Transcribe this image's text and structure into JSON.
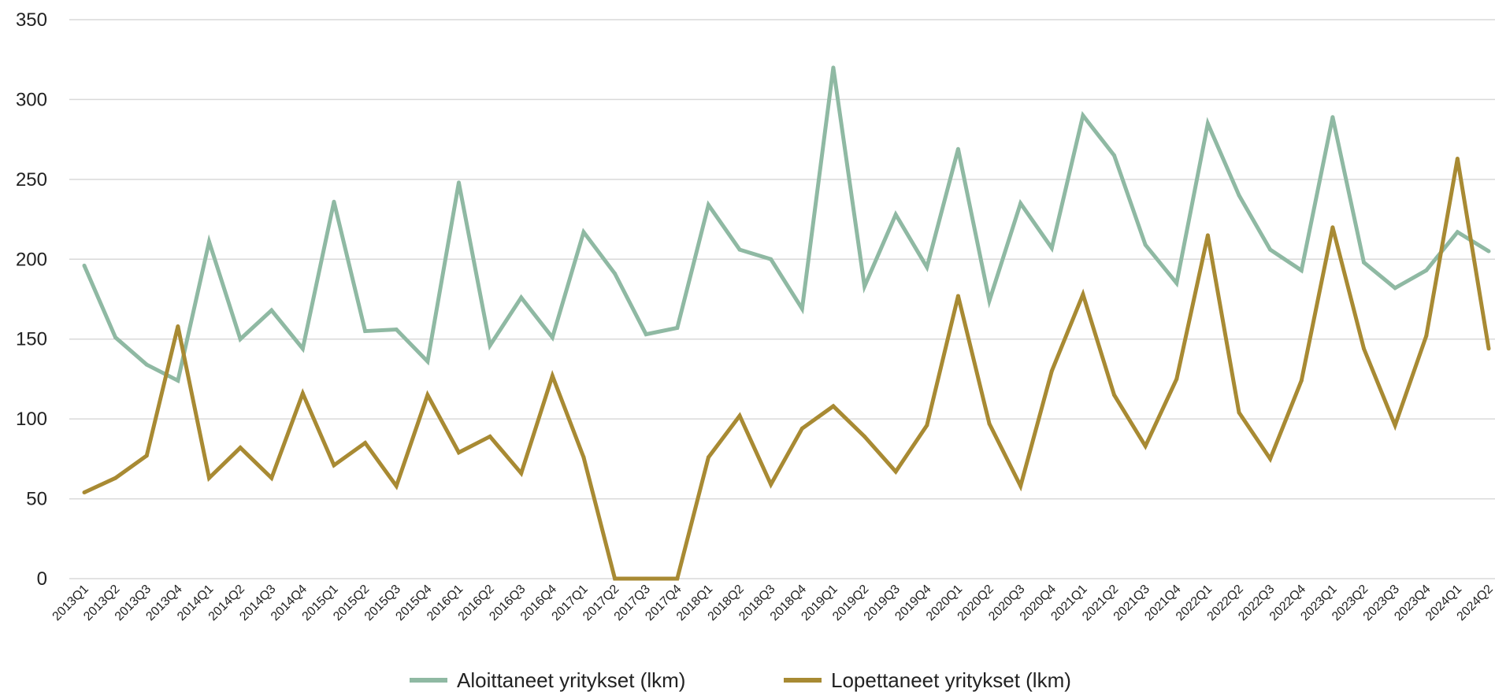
{
  "chart_data": {
    "type": "line",
    "title": "",
    "xlabel": "",
    "ylabel": "",
    "ylim": [
      0,
      350
    ],
    "yticks": [
      0,
      50,
      100,
      150,
      200,
      250,
      300,
      350
    ],
    "grid": true,
    "legend_position": "bottom",
    "categories": [
      "2013Q1",
      "2013Q2",
      "2013Q3",
      "2013Q4",
      "2014Q1",
      "2014Q2",
      "2014Q3",
      "2014Q4",
      "2015Q1",
      "2015Q2",
      "2015Q3",
      "2015Q4",
      "2016Q1",
      "2016Q2",
      "2016Q3",
      "2016Q4",
      "2017Q1",
      "2017Q2",
      "2017Q3",
      "2017Q4",
      "2018Q1",
      "2018Q2",
      "2018Q3",
      "2018Q4",
      "2019Q1",
      "2019Q2",
      "2019Q3",
      "2019Q4",
      "2020Q1",
      "2020Q2",
      "2020Q3",
      "2020Q4",
      "2021Q1",
      "2021Q2",
      "2021Q3",
      "2021Q4",
      "2022Q1",
      "2022Q2",
      "2022Q3",
      "2022Q4",
      "2023Q1",
      "2023Q2",
      "2023Q3",
      "2023Q4",
      "2024Q1",
      "2024Q2"
    ],
    "series": [
      {
        "name": "Aloittaneet yritykset (lkm)",
        "color": "#8fb9a3",
        "values": [
          196,
          151,
          134,
          124,
          211,
          150,
          168,
          144,
          236,
          155,
          156,
          136,
          248,
          146,
          176,
          151,
          217,
          191,
          153,
          157,
          234,
          206,
          200,
          169,
          320,
          183,
          228,
          195,
          269,
          174,
          235,
          207,
          290,
          265,
          209,
          185,
          285,
          240,
          206,
          193,
          289,
          198,
          182,
          193,
          217,
          205
        ]
      },
      {
        "name": "Lopettaneet yritykset (lkm)",
        "color": "#a88a33",
        "values": [
          54,
          63,
          77,
          158,
          63,
          82,
          63,
          116,
          71,
          85,
          58,
          115,
          79,
          89,
          66,
          127,
          76,
          0,
          0,
          0,
          76,
          102,
          59,
          94,
          108,
          89,
          67,
          96,
          177,
          97,
          58,
          130,
          178,
          115,
          83,
          125,
          215,
          104,
          75,
          124,
          220,
          144,
          96,
          152,
          263,
          144
        ]
      }
    ]
  }
}
